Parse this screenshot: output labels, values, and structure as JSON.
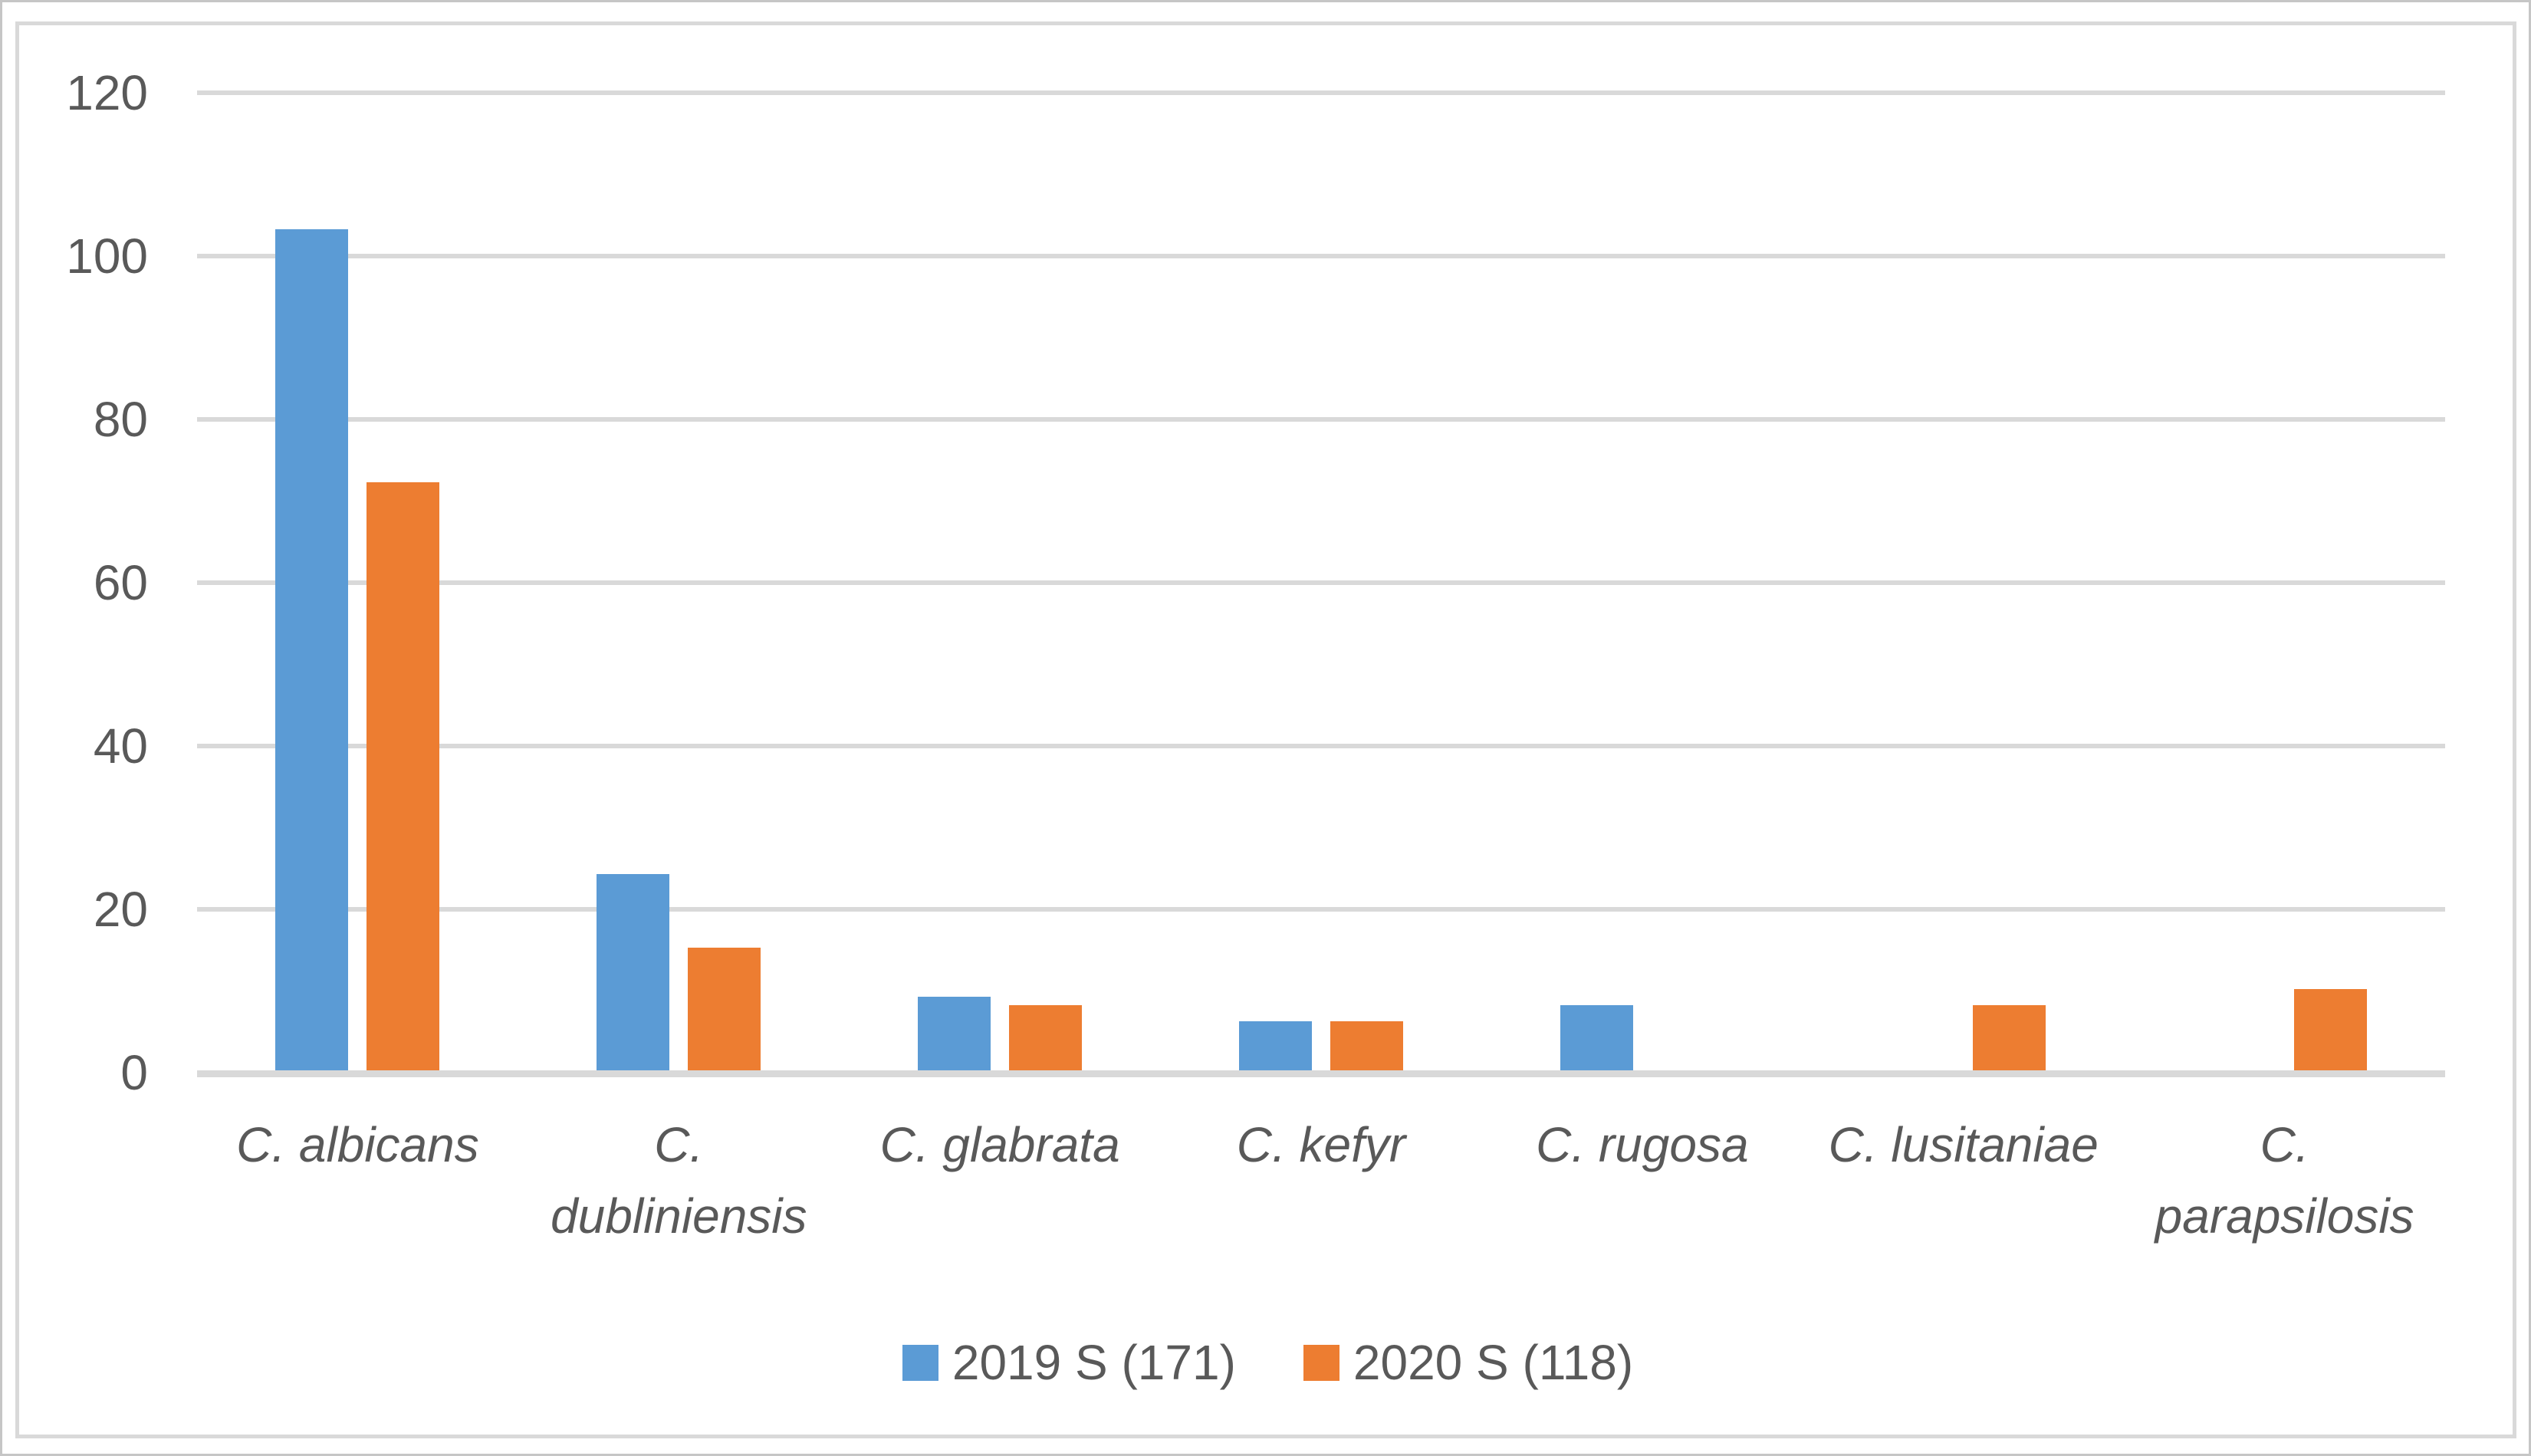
{
  "chart_data": {
    "type": "bar",
    "title": "",
    "xlabel": "",
    "ylabel": "",
    "categories": [
      "C. albicans",
      "C. dubliniensis",
      "C. glabrata",
      "C. kefyr",
      "C. rugosa",
      "C. lusitaniae",
      "C. parapsilosis"
    ],
    "category_lines": [
      [
        "C. albicans"
      ],
      [
        "C.",
        "dubliniensis"
      ],
      [
        "C. glabrata"
      ],
      [
        "C. kefyr"
      ],
      [
        "C. rugosa"
      ],
      [
        "C. lusitaniae"
      ],
      [
        "C.",
        "parapsilosis"
      ]
    ],
    "series": [
      {
        "name": "2019 S (171)",
        "color": "#5B9BD5",
        "values": [
          103,
          24,
          9,
          6,
          8,
          0,
          0
        ]
      },
      {
        "name": "2020 S (118)",
        "color": "#ED7D31",
        "values": [
          72,
          15,
          8,
          6,
          0,
          8,
          10
        ]
      }
    ],
    "ylim": [
      0,
      120
    ],
    "yticks": [
      0,
      20,
      40,
      60,
      80,
      100,
      120
    ],
    "grid": true,
    "legend_position": "bottom",
    "category_label_style": "italic"
  },
  "colors": {
    "bar_2019": "#5B9BD5",
    "bar_2020": "#ED7D31",
    "text": "#595959",
    "gridline": "#D9D9D9",
    "plot_border": "#D9D9D9",
    "figure_border": "#C6C6C6",
    "background": "#FFFFFF"
  }
}
